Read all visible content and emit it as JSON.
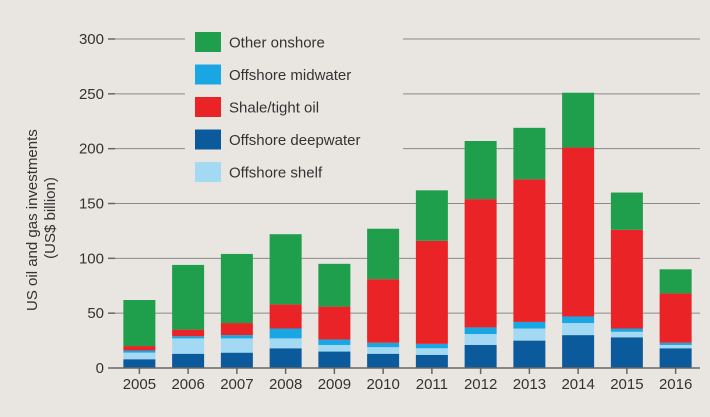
{
  "chart_data": {
    "type": "bar",
    "stacked": true,
    "categories": [
      "2005",
      "2006",
      "2007",
      "2008",
      "2009",
      "2010",
      "2011",
      "2012",
      "2013",
      "2014",
      "2015",
      "2016"
    ],
    "ylabel": "US oil and gas investments (US$ billion)",
    "ylabel_lines": [
      "US oil and gas investments",
      "(US$ billion)"
    ],
    "ylim": [
      0,
      300
    ],
    "yticks": [
      0,
      50,
      100,
      150,
      200,
      250,
      300
    ],
    "grid": "horizontal",
    "legend_position": "top-left",
    "series": [
      {
        "name": "Offshore deepwater",
        "color": "#0b5a9c",
        "values": [
          8,
          13,
          14,
          18,
          15,
          13,
          12,
          21,
          25,
          30,
          28,
          18
        ]
      },
      {
        "name": "Offshore shelf",
        "color": "#a3d9f3",
        "values": [
          6,
          14,
          13,
          9,
          6,
          6,
          6,
          10,
          11,
          11,
          5,
          3
        ]
      },
      {
        "name": "Offshore midwater",
        "color": "#1aa6e2",
        "values": [
          2,
          2,
          3,
          9,
          5,
          4,
          4,
          6,
          6,
          6,
          3,
          2
        ]
      },
      {
        "name": "Shale/tight oil",
        "color": "#ea2327",
        "values": [
          4,
          6,
          11,
          22,
          30,
          58,
          94,
          117,
          130,
          154,
          90,
          45
        ]
      },
      {
        "name": "Other onshore",
        "color": "#1f9e4b",
        "values": [
          42,
          59,
          63,
          64,
          39,
          46,
          46,
          53,
          47,
          50,
          34,
          22
        ]
      }
    ],
    "legend_order": [
      "Other onshore",
      "Offshore midwater",
      "Shale/tight oil",
      "Offshore deepwater",
      "Offshore shelf"
    ]
  }
}
